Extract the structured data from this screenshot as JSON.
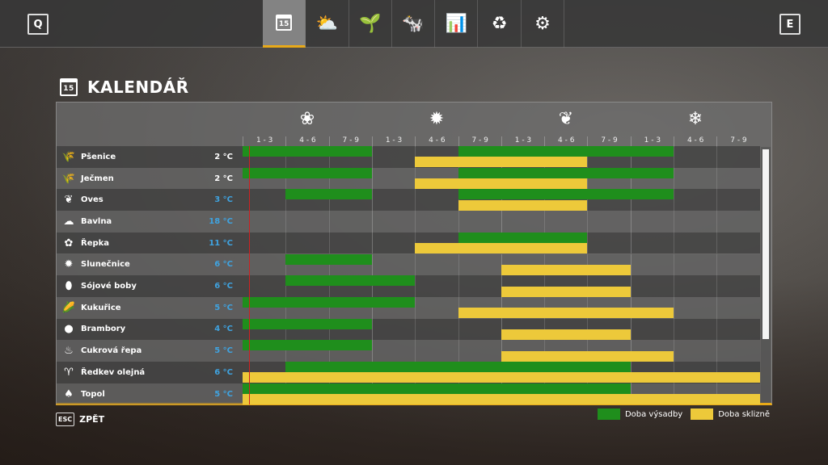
{
  "topbar": {
    "left_key": "Q",
    "right_key": "E",
    "tabs": [
      {
        "icon": "calendar-icon",
        "glyph": "15",
        "active": true
      },
      {
        "icon": "weather-icon",
        "glyph": "⛅",
        "active": false
      },
      {
        "icon": "seedling-icon",
        "glyph": "🌱",
        "active": false
      },
      {
        "icon": "cow-icon",
        "glyph": "🐄",
        "active": false
      },
      {
        "icon": "chart-icon",
        "glyph": "📊",
        "active": false
      },
      {
        "icon": "cycle-icon",
        "glyph": "♻",
        "active": false
      },
      {
        "icon": "gears-icon",
        "glyph": "⚙",
        "active": false
      }
    ]
  },
  "page": {
    "title": "KALENDÁŘ",
    "calendar_day": "15"
  },
  "seasons": [
    {
      "name": "spring",
      "icon": "flower-icon",
      "glyph": "❀"
    },
    {
      "name": "summer",
      "icon": "sun-icon",
      "glyph": "✹"
    },
    {
      "name": "autumn",
      "icon": "leaf-icon",
      "glyph": "❦"
    },
    {
      "name": "winter",
      "icon": "snowflake-icon",
      "glyph": "❄"
    }
  ],
  "periods": [
    "1 - 3",
    "4 - 6",
    "7 - 9",
    "1 - 3",
    "4 - 6",
    "7 - 9",
    "1 - 3",
    "4 - 6",
    "7 - 9",
    "1 - 3",
    "4 - 6",
    "7 - 9"
  ],
  "today_marker": {
    "period": 1,
    "fraction": 0.15
  },
  "colors": {
    "sowing": "#1f8e1c",
    "harvest": "#edc93a",
    "temp_normal": "#ffffff",
    "temp_blue": "#3fa3e0",
    "accent": "#e8a918"
  },
  "crops": [
    {
      "name": "Pšenice",
      "icon": "wheat-icon",
      "glyph": "🌾",
      "temp": "2 °C",
      "temp_color": "#ffffff",
      "sowing": [
        [
          1,
          3
        ],
        [
          6,
          10
        ]
      ],
      "harvest": [
        [
          5,
          8
        ]
      ]
    },
    {
      "name": "Ječmen",
      "icon": "barley-icon",
      "glyph": "🌾",
      "temp": "2 °C",
      "temp_color": "#ffffff",
      "sowing": [
        [
          1,
          3
        ],
        [
          6,
          10
        ]
      ],
      "harvest": [
        [
          5,
          8
        ]
      ]
    },
    {
      "name": "Oves",
      "icon": "oat-icon",
      "glyph": "❦",
      "temp": "3 °C",
      "temp_color": "#3fa3e0",
      "sowing": [
        [
          2,
          3
        ],
        [
          6,
          10
        ]
      ],
      "harvest": [
        [
          6,
          8
        ]
      ]
    },
    {
      "name": "Bavlna",
      "icon": "cotton-icon",
      "glyph": "☁",
      "temp": "18 °C",
      "temp_color": "#3fa3e0",
      "sowing": [],
      "harvest": []
    },
    {
      "name": "Řepka",
      "icon": "canola-icon",
      "glyph": "✿",
      "temp": "11 °C",
      "temp_color": "#3fa3e0",
      "sowing": [
        [
          6,
          8
        ]
      ],
      "harvest": [
        [
          5,
          8
        ]
      ]
    },
    {
      "name": "Slunečnice",
      "icon": "sunflower-icon",
      "glyph": "✹",
      "temp": "6 °C",
      "temp_color": "#3fa3e0",
      "sowing": [
        [
          2,
          3
        ]
      ],
      "harvest": [
        [
          7,
          9
        ]
      ]
    },
    {
      "name": "Sójové boby",
      "icon": "soybean-icon",
      "glyph": "⬮",
      "temp": "6 °C",
      "temp_color": "#3fa3e0",
      "sowing": [
        [
          2,
          4
        ]
      ],
      "harvest": [
        [
          7,
          9
        ]
      ]
    },
    {
      "name": "Kukuřice",
      "icon": "corn-icon",
      "glyph": "🌽",
      "temp": "5 °C",
      "temp_color": "#3fa3e0",
      "sowing": [
        [
          1,
          4
        ]
      ],
      "harvest": [
        [
          6,
          10
        ]
      ]
    },
    {
      "name": "Brambory",
      "icon": "potato-icon",
      "glyph": "●",
      "temp": "4 °C",
      "temp_color": "#3fa3e0",
      "sowing": [
        [
          1,
          3
        ]
      ],
      "harvest": [
        [
          7,
          9
        ]
      ]
    },
    {
      "name": "Cukrová řepa",
      "icon": "sugarbeet-icon",
      "glyph": "♨",
      "temp": "5 °C",
      "temp_color": "#3fa3e0",
      "sowing": [
        [
          1,
          3
        ]
      ],
      "harvest": [
        [
          7,
          10
        ]
      ]
    },
    {
      "name": "Ředkev olejná",
      "icon": "radish-icon",
      "glyph": "♈",
      "temp": "6 °C",
      "temp_color": "#3fa3e0",
      "sowing": [
        [
          2,
          9
        ]
      ],
      "harvest": [
        [
          1,
          12
        ]
      ]
    },
    {
      "name": "Topol",
      "icon": "poplar-icon",
      "glyph": "♠",
      "temp": "5 °C",
      "temp_color": "#3fa3e0",
      "sowing": [
        [
          1,
          9
        ]
      ],
      "harvest": [
        [
          1,
          12
        ]
      ]
    }
  ],
  "footer": {
    "esc_key": "ESC",
    "back_label": "ZPĚT"
  },
  "legend": {
    "sowing_label": "Doba výsadby",
    "harvest_label": "Doba sklizně"
  }
}
